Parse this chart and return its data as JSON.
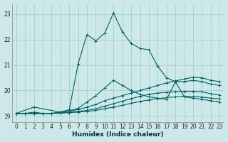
{
  "xlabel": "Humidex (Indice chaleur)",
  "bg_color": "#cce8e8",
  "line_color": "#006060",
  "grid_color": "#aacfcf",
  "xlim": [
    -0.5,
    23.5
  ],
  "ylim": [
    18.75,
    23.4
  ],
  "xticks": [
    0,
    1,
    2,
    3,
    4,
    5,
    6,
    7,
    8,
    9,
    10,
    11,
    12,
    13,
    14,
    15,
    16,
    17,
    18,
    19,
    20,
    21,
    22,
    23
  ],
  "yticks": [
    19,
    20,
    21,
    22,
    23
  ],
  "lines": [
    {
      "x": [
        0,
        2,
        5,
        6,
        7,
        8,
        9,
        10,
        11,
        12,
        13,
        14,
        15,
        16,
        17,
        18,
        19,
        20,
        21,
        22,
        23
      ],
      "y": [
        19.1,
        19.35,
        19.15,
        19.25,
        21.05,
        22.2,
        21.95,
        22.25,
        23.05,
        22.3,
        21.85,
        21.65,
        21.6,
        20.95,
        20.5,
        20.35,
        20.35,
        20.4,
        20.35,
        20.25,
        20.2
      ]
    },
    {
      "x": [
        0,
        1,
        2,
        3,
        4,
        5,
        6,
        7,
        8,
        9,
        10,
        11,
        12,
        13,
        14,
        15,
        16,
        17,
        18,
        19,
        20,
        21,
        22,
        23
      ],
      "y": [
        19.1,
        19.1,
        19.15,
        19.1,
        19.1,
        19.15,
        19.2,
        19.3,
        19.55,
        19.8,
        20.1,
        20.4,
        20.2,
        20.0,
        19.85,
        19.75,
        19.7,
        19.65,
        20.35,
        19.75,
        19.7,
        19.65,
        19.6,
        19.55
      ]
    },
    {
      "x": [
        0,
        1,
        2,
        3,
        4,
        5,
        6,
        7,
        8,
        9,
        10,
        11,
        12,
        13,
        14,
        15,
        16,
        17,
        18,
        19,
        20,
        21,
        22,
        23
      ],
      "y": [
        19.1,
        19.1,
        19.1,
        19.1,
        19.1,
        19.15,
        19.2,
        19.25,
        19.35,
        19.45,
        19.6,
        19.7,
        19.8,
        19.9,
        20.0,
        20.1,
        20.2,
        20.3,
        20.38,
        20.45,
        20.52,
        20.5,
        20.4,
        20.35
      ]
    },
    {
      "x": [
        0,
        1,
        2,
        3,
        4,
        5,
        6,
        7,
        8,
        9,
        10,
        11,
        12,
        13,
        14,
        15,
        16,
        17,
        18,
        19,
        20,
        21,
        22,
        23
      ],
      "y": [
        19.1,
        19.1,
        19.1,
        19.1,
        19.1,
        19.12,
        19.15,
        19.18,
        19.22,
        19.28,
        19.38,
        19.48,
        19.58,
        19.68,
        19.77,
        19.85,
        19.9,
        19.93,
        19.95,
        19.97,
        19.97,
        19.95,
        19.87,
        19.82
      ]
    },
    {
      "x": [
        0,
        1,
        2,
        3,
        4,
        5,
        6,
        7,
        8,
        9,
        10,
        11,
        12,
        13,
        14,
        15,
        16,
        17,
        18,
        19,
        20,
        21,
        22,
        23
      ],
      "y": [
        19.1,
        19.1,
        19.1,
        19.1,
        19.1,
        19.11,
        19.13,
        19.15,
        19.18,
        19.22,
        19.28,
        19.35,
        19.42,
        19.5,
        19.57,
        19.63,
        19.68,
        19.72,
        19.75,
        19.77,
        19.76,
        19.74,
        19.7,
        19.67
      ]
    }
  ]
}
